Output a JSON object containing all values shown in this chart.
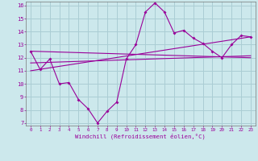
{
  "xlabel": "Windchill (Refroidissement éolien,°C)",
  "background_color": "#cce8ec",
  "grid_color": "#aacdd4",
  "line_color": "#990099",
  "x_hours": [
    0,
    1,
    2,
    3,
    4,
    5,
    6,
    7,
    8,
    9,
    10,
    11,
    12,
    13,
    14,
    15,
    16,
    17,
    18,
    19,
    20,
    21,
    22,
    23
  ],
  "windchill": [
    12.5,
    11.1,
    11.9,
    10.0,
    10.1,
    8.8,
    8.1,
    7.0,
    7.9,
    8.6,
    11.9,
    13.0,
    15.5,
    16.2,
    15.5,
    13.9,
    14.1,
    13.5,
    13.1,
    12.5,
    12.0,
    13.0,
    13.7,
    13.6
  ],
  "trend1_x": [
    0,
    23
  ],
  "trend1_y": [
    12.5,
    12.0
  ],
  "trend2_x": [
    0,
    23
  ],
  "trend2_y": [
    11.6,
    12.15
  ],
  "trend3_x": [
    0,
    23
  ],
  "trend3_y": [
    11.0,
    13.6
  ],
  "ylim": [
    6.8,
    16.3
  ],
  "yticks": [
    7,
    8,
    9,
    10,
    11,
    12,
    13,
    14,
    15,
    16
  ],
  "xticks": [
    0,
    1,
    2,
    3,
    4,
    5,
    6,
    7,
    8,
    9,
    10,
    11,
    12,
    13,
    14,
    15,
    16,
    17,
    18,
    19,
    20,
    21,
    22,
    23
  ]
}
